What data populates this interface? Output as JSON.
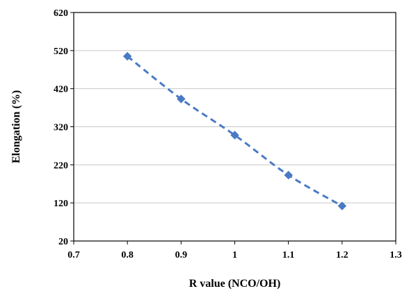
{
  "chart_data": {
    "type": "line",
    "xlabel": "R value (NCO/OH)",
    "ylabel": "Elongation (%)",
    "x": [
      0.8,
      0.9,
      1.0,
      1.1,
      1.2
    ],
    "series": [
      {
        "values": [
          505,
          393,
          298,
          193,
          112
        ],
        "color": "#4a7ac4"
      }
    ],
    "xlim": [
      0.7,
      1.3
    ],
    "ylim": [
      20,
      620
    ],
    "xticks": [
      "0.7",
      "0.8",
      "0.9",
      "1",
      "1.1",
      "1.2",
      "1.3"
    ],
    "yticks": [
      "20",
      "120",
      "220",
      "320",
      "420",
      "520",
      "620"
    ],
    "grid": "horizontal",
    "line_style": "dashed",
    "marker": "diamond",
    "legend": "none"
  }
}
